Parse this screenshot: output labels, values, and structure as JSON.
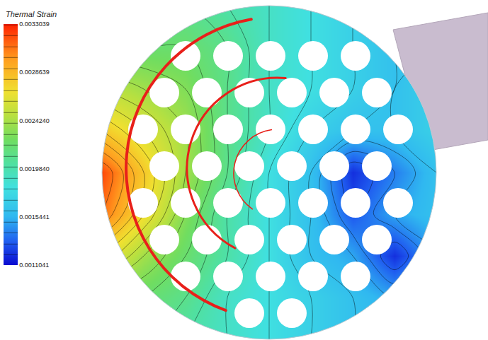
{
  "chart_data": {
    "type": "contour",
    "title": "Thermal Strain",
    "x": [
      -1,
      -0.75,
      -0.5,
      -0.25,
      0,
      0.25,
      0.5,
      0.75,
      1
    ],
    "y": [
      -1,
      -0.75,
      -0.5,
      -0.25,
      0,
      0.25,
      0.5,
      0.75,
      1
    ],
    "z": [
      [
        0.0021,
        0.0021,
        0.002,
        0.0019,
        0.0018,
        0.0017,
        0.0016,
        0.0016,
        0.0016
      ],
      [
        0.0023,
        0.0022,
        0.0021,
        0.0019,
        0.0018,
        0.0017,
        0.0016,
        0.0015,
        0.0016
      ],
      [
        0.0027,
        0.0024,
        0.0022,
        0.002,
        0.0018,
        0.0016,
        0.0015,
        0.0012,
        0.0015
      ],
      [
        0.0031,
        0.0027,
        0.0023,
        0.002,
        0.0018,
        0.0016,
        0.0013,
        0.0015,
        0.0016
      ],
      [
        0.0032,
        0.0028,
        0.0024,
        0.0021,
        0.0018,
        0.0016,
        0.0012,
        0.0014,
        0.0016
      ],
      [
        0.0028,
        0.0026,
        0.0024,
        0.0021,
        0.0019,
        0.0017,
        0.0016,
        0.0016,
        0.0017
      ],
      [
        0.0025,
        0.0024,
        0.0023,
        0.0021,
        0.0019,
        0.0018,
        0.0017,
        0.0016,
        0.0017
      ],
      [
        0.0022,
        0.0022,
        0.0022,
        0.0021,
        0.0019,
        0.0018,
        0.0017,
        0.0016,
        0.0016
      ],
      [
        0.0021,
        0.0021,
        0.0021,
        0.002,
        0.0019,
        0.0018,
        0.0017,
        0.0016,
        0.0016
      ]
    ],
    "xlim": [
      -1,
      1
    ],
    "ylim": [
      -1,
      1
    ],
    "zlim": [
      0.0011041,
      0.0033039
    ],
    "zticks": [
      0.0011041,
      0.0015441,
      {
        "value": 0.001984,
        "label": "0.0019840"
      },
      {
        "value": 0.002424,
        "label": "0.0024240"
      },
      0.0028639,
      0.0033039
    ],
    "tick_labels": false
  }
}
